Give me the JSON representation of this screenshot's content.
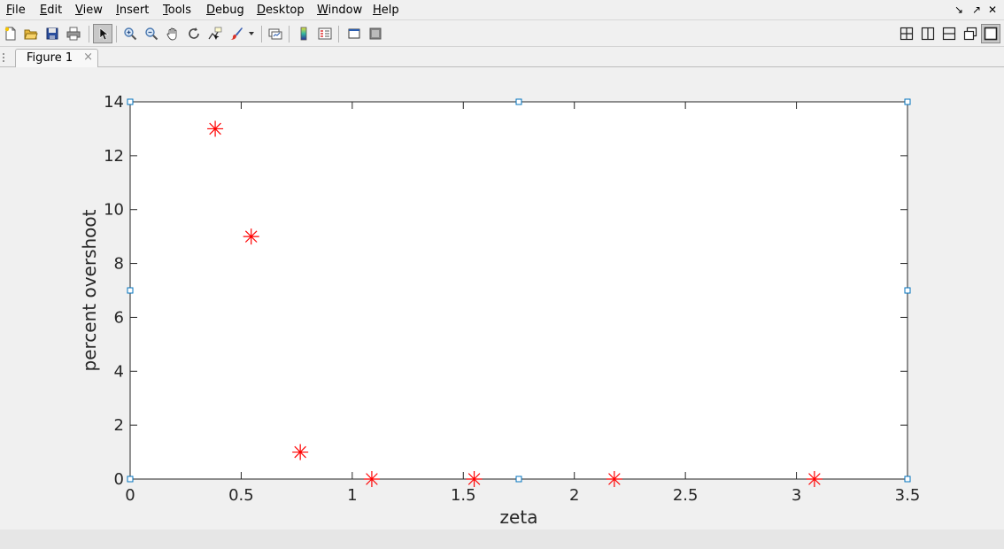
{
  "menubar": {
    "items": [
      {
        "mnem": "F",
        "rest": "ile"
      },
      {
        "mnem": "E",
        "rest": "dit"
      },
      {
        "mnem": "V",
        "rest": "iew"
      },
      {
        "mnem": "I",
        "rest": "nsert"
      },
      {
        "mnem": "T",
        "rest": "ools"
      },
      {
        "mnem": "D",
        "rest": "ebug"
      },
      {
        "mnem": "D",
        "rest": "esktop"
      },
      {
        "mnem": "W",
        "rest": "indow"
      },
      {
        "mnem": "H",
        "rest": "elp"
      }
    ]
  },
  "toolbar": {
    "buttons": [
      "new-figure-icon",
      "open-file-icon",
      "save-icon",
      "print-icon",
      "edit-plot-arrow-icon",
      "zoom-in-icon",
      "zoom-out-icon",
      "pan-hand-icon",
      "rotate-3d-icon",
      "data-cursor-icon",
      "brush-icon",
      "brush-dropdown-icon",
      "link-plot-icon",
      "colorbar-icon",
      "legend-icon",
      "hide-plot-tools-icon",
      "show-plot-tools-icon",
      "tile-layout-icon",
      "left-right-layout-icon",
      "top-bottom-layout-icon",
      "float-layout-icon",
      "maximize-layout-icon"
    ]
  },
  "tabs": {
    "figure_tab": "Figure 1",
    "close_glyph": "×"
  },
  "window_controls": {
    "undock": "↘",
    "dock": "↗",
    "close": "✕"
  },
  "chart_data": {
    "type": "scatter",
    "marker": "asterisk",
    "marker_color": "#ff0000",
    "x": [
      0.383,
      0.545,
      0.766,
      1.088,
      1.549,
      2.18,
      3.081
    ],
    "y": [
      13,
      9,
      1,
      0,
      0,
      0,
      0
    ],
    "xlabel": "zeta",
    "ylabel": "percent overshoot",
    "xlim": [
      0,
      3.5
    ],
    "ylim": [
      0,
      14
    ],
    "xticks": [
      0,
      0.5,
      1,
      1.5,
      2,
      2.5,
      3,
      3.5
    ],
    "yticks": [
      0,
      2,
      4,
      6,
      8,
      10,
      12,
      14
    ],
    "xtick_labels": [
      "0",
      "0.5",
      "1",
      "1.5",
      "2",
      "2.5",
      "3",
      "3.5"
    ],
    "ytick_labels": [
      "0",
      "2",
      "4",
      "6",
      "8",
      "10",
      "12",
      "14"
    ],
    "grid": false,
    "axes_selected": true,
    "selection_color": "#0072bd"
  }
}
